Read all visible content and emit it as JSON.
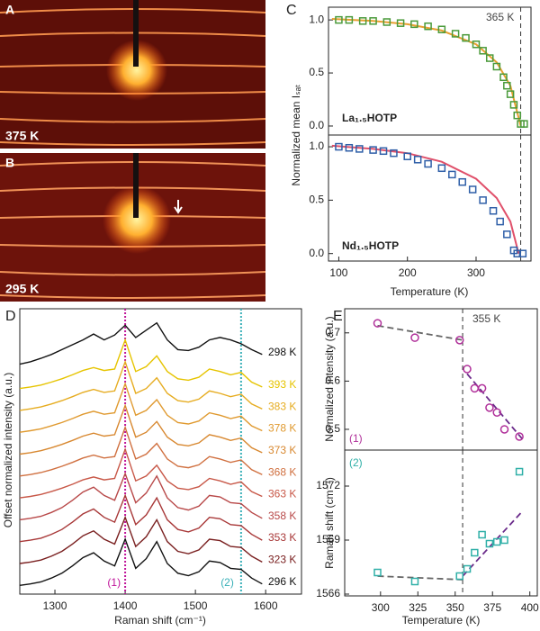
{
  "panels": [
    {
      "letter": "A",
      "label": "375 K"
    },
    {
      "letter": "B",
      "label": "295 K"
    }
  ],
  "chart_data": [
    {
      "type": "scatter",
      "panel": "C",
      "ylabel": "Normalized mean Iₛₐₜ",
      "label": "La₁.₅HOTP",
      "xlim": [
        85,
        380
      ],
      "ylim": [
        -0.085,
        1.12
      ],
      "yticks": [
        {
          "value": 0,
          "label": "0.0"
        },
        0.5,
        {
          "value": 1,
          "label": "1.0"
        }
      ],
      "vline": {
        "x": 365,
        "label": "365 K",
        "color": "#333333"
      },
      "series": [
        {
          "marker": "line",
          "color": "#e8a030",
          "x": [
            90,
            150,
            200,
            250,
            300,
            330,
            350,
            365
          ],
          "values": [
            1.01,
            0.99,
            0.96,
            0.9,
            0.77,
            0.6,
            0.38,
            0.0
          ]
        },
        {
          "marker": "square",
          "color": "#4a9a3a",
          "x": [
            100,
            115,
            135,
            150,
            170,
            190,
            210,
            230,
            250,
            270,
            285,
            300,
            310,
            320,
            330,
            340,
            345,
            350,
            355,
            360,
            365,
            370
          ],
          "values": [
            1.0,
            1.0,
            0.99,
            0.99,
            0.98,
            0.97,
            0.96,
            0.94,
            0.91,
            0.87,
            0.83,
            0.77,
            0.71,
            0.64,
            0.56,
            0.46,
            0.38,
            0.3,
            0.2,
            0.1,
            0.02,
            0.02
          ]
        }
      ]
    },
    {
      "type": "scatter",
      "panel": "C",
      "xlabel": "Temperature (K)",
      "label": "Nd₁.₅HOTP",
      "xlim": [
        85,
        380
      ],
      "ylim": [
        -0.07,
        1.11
      ],
      "xticks": [
        100,
        200,
        300
      ],
      "yticks": [
        {
          "value": 0,
          "label": "0.0"
        },
        0.5,
        {
          "value": 1,
          "label": "1.0"
        }
      ],
      "vline": {
        "x": 365,
        "color": "#333333"
      },
      "series": [
        {
          "marker": "line",
          "color": "#e0506a",
          "x": [
            90,
            150,
            200,
            250,
            300,
            330,
            350,
            362
          ],
          "values": [
            1.01,
            0.98,
            0.94,
            0.86,
            0.7,
            0.52,
            0.3,
            0.0
          ]
        },
        {
          "marker": "square",
          "color": "#2f5fa8",
          "x": [
            100,
            115,
            130,
            150,
            165,
            180,
            200,
            215,
            230,
            250,
            265,
            280,
            295,
            310,
            325,
            335,
            345,
            355,
            360,
            368
          ],
          "values": [
            1.0,
            0.99,
            0.98,
            0.97,
            0.96,
            0.94,
            0.91,
            0.88,
            0.84,
            0.8,
            0.74,
            0.67,
            0.6,
            0.5,
            0.4,
            0.3,
            0.18,
            0.03,
            0.0,
            0.0
          ]
        }
      ]
    },
    {
      "type": "line",
      "panel": "D",
      "xlabel": "Raman shift (cm⁻¹)",
      "ylabel": "Offset normalized intensity (a.u.)",
      "xlim": [
        1250,
        1651
      ],
      "ylim": [
        -0.13,
        5.74
      ],
      "xticks": [
        1300,
        1400,
        1500,
        1600
      ],
      "vlines": [
        {
          "x": 1400,
          "label": "(1)",
          "color": "#c0149a"
        },
        {
          "x": 1565,
          "label": "(2)",
          "color": "#3ab0b8"
        }
      ],
      "x": [
        1250,
        1265,
        1280,
        1295,
        1310,
        1325,
        1340,
        1355,
        1370,
        1385,
        1400,
        1415,
        1430,
        1445,
        1460,
        1475,
        1490,
        1505,
        1520,
        1535,
        1550,
        1565,
        1580,
        1595
      ],
      "series": [
        {
          "name": "298 K",
          "color": "#111111",
          "values": [
            4.6,
            4.65,
            4.72,
            4.8,
            4.9,
            5.0,
            5.1,
            5.22,
            5.1,
            5.2,
            5.4,
            5.15,
            5.3,
            5.45,
            5.1,
            4.9,
            4.88,
            4.95,
            5.1,
            5.15,
            5.1,
            5.02,
            4.9,
            4.8
          ]
        },
        {
          "name": "393 K",
          "color": "#e6c400",
          "values": [
            4.1,
            4.13,
            4.17,
            4.23,
            4.3,
            4.38,
            4.47,
            4.53,
            4.47,
            4.5,
            5.1,
            4.45,
            4.55,
            4.77,
            4.45,
            4.3,
            4.27,
            4.33,
            4.5,
            4.45,
            4.38,
            4.43,
            4.23,
            4.13
          ]
        },
        {
          "name": "383 K",
          "color": "#e6ac20",
          "values": [
            3.65,
            3.68,
            3.72,
            3.78,
            3.85,
            3.93,
            4.02,
            4.08,
            4.02,
            4.05,
            4.65,
            4.0,
            4.1,
            4.32,
            4.0,
            3.85,
            3.82,
            3.88,
            4.05,
            4.0,
            3.93,
            3.98,
            3.78,
            3.68
          ]
        },
        {
          "name": "378 K",
          "color": "#e09a30",
          "values": [
            3.2,
            3.23,
            3.27,
            3.33,
            3.4,
            3.48,
            3.57,
            3.63,
            3.57,
            3.6,
            4.2,
            3.55,
            3.65,
            3.87,
            3.55,
            3.4,
            3.37,
            3.43,
            3.6,
            3.55,
            3.48,
            3.53,
            3.33,
            3.23
          ]
        },
        {
          "name": "373 K",
          "color": "#d88830",
          "values": [
            2.75,
            2.78,
            2.82,
            2.88,
            2.95,
            3.03,
            3.12,
            3.18,
            3.12,
            3.15,
            3.75,
            3.1,
            3.2,
            3.42,
            3.1,
            2.95,
            2.92,
            2.98,
            3.15,
            3.1,
            3.03,
            3.08,
            2.88,
            2.78
          ]
        },
        {
          "name": "368 K",
          "color": "#d07040",
          "values": [
            2.3,
            2.33,
            2.37,
            2.43,
            2.5,
            2.58,
            2.67,
            2.73,
            2.67,
            2.7,
            3.3,
            2.65,
            2.75,
            2.97,
            2.65,
            2.5,
            2.47,
            2.53,
            2.7,
            2.65,
            2.58,
            2.63,
            2.43,
            2.33
          ]
        },
        {
          "name": "363 K",
          "color": "#c85848",
          "values": [
            1.85,
            1.88,
            1.92,
            1.98,
            2.05,
            2.13,
            2.22,
            2.28,
            2.22,
            2.25,
            2.85,
            2.2,
            2.3,
            2.52,
            2.2,
            2.05,
            2.02,
            2.08,
            2.25,
            2.2,
            2.13,
            2.18,
            1.98,
            1.88
          ]
        },
        {
          "name": "358 K",
          "color": "#b84848",
          "values": [
            1.4,
            1.43,
            1.47,
            1.55,
            1.65,
            1.8,
            1.97,
            2.07,
            1.9,
            1.8,
            2.35,
            1.75,
            1.95,
            2.3,
            1.85,
            1.65,
            1.6,
            1.68,
            1.9,
            1.87,
            1.75,
            1.73,
            1.55,
            1.43
          ]
        },
        {
          "name": "353 K",
          "color": "#a83838",
          "values": [
            0.95,
            0.98,
            1.02,
            1.1,
            1.2,
            1.35,
            1.52,
            1.62,
            1.45,
            1.35,
            1.9,
            1.3,
            1.5,
            1.85,
            1.4,
            1.2,
            1.15,
            1.23,
            1.45,
            1.42,
            1.3,
            1.28,
            1.1,
            0.98
          ]
        },
        {
          "name": "323 K",
          "color": "#7a2020",
          "values": [
            0.5,
            0.53,
            0.57,
            0.65,
            0.75,
            0.9,
            1.07,
            1.17,
            1.0,
            0.9,
            1.45,
            0.85,
            1.05,
            1.4,
            0.95,
            0.75,
            0.7,
            0.78,
            1.0,
            0.97,
            0.85,
            0.83,
            0.65,
            0.53
          ]
        },
        {
          "name": "296 K",
          "color": "#111111",
          "values": [
            0.05,
            0.08,
            0.12,
            0.2,
            0.3,
            0.45,
            0.62,
            0.72,
            0.55,
            0.45,
            1.0,
            0.4,
            0.6,
            0.95,
            0.5,
            0.3,
            0.25,
            0.33,
            0.55,
            0.52,
            0.4,
            0.38,
            0.2,
            0.08
          ]
        }
      ]
    },
    {
      "type": "scatter",
      "panel": "E",
      "ylabel": "Normalized intensity (a.u.)",
      "label": "(1)",
      "label_color": "#b0309a",
      "xlim": [
        276,
        405
      ],
      "ylim": [
        0.457,
        0.75
      ],
      "yticks": [
        0.5,
        0.6,
        0.7
      ],
      "vline": {
        "x": 355,
        "label": "355 K",
        "color": "#333333"
      },
      "series": [
        {
          "marker": "dashed",
          "color": "#666666",
          "x": [
            298,
            355
          ],
          "values": [
            0.715,
            0.685
          ]
        },
        {
          "marker": "dashed",
          "color": "#6a2a8a",
          "x": [
            358,
            395
          ],
          "values": [
            0.615,
            0.48
          ]
        },
        {
          "marker": "circle",
          "color": "#b0309a",
          "x": [
            298,
            323,
            353,
            358,
            363,
            368,
            373,
            378,
            383,
            393
          ],
          "values": [
            0.72,
            0.69,
            0.685,
            0.625,
            0.585,
            0.585,
            0.545,
            0.535,
            0.5,
            0.485
          ]
        }
      ]
    },
    {
      "type": "scatter",
      "panel": "E",
      "ylabel": "Raman shift (cm⁻¹)",
      "xlabel": "Temperature (K)",
      "label": "(2)",
      "label_color": "#30b0a8",
      "xlim": [
        276,
        405
      ],
      "ylim": [
        1565.9,
        1574
      ],
      "xticks": [
        300,
        325,
        350,
        375,
        400
      ],
      "yticks": [
        1566,
        1569,
        1572
      ],
      "vline": {
        "x": 355,
        "color": "#333333"
      },
      "series": [
        {
          "marker": "dashed",
          "color": "#666666",
          "x": [
            298,
            355
          ],
          "values": [
            1567.0,
            1566.8
          ]
        },
        {
          "marker": "dashed",
          "color": "#6a2a8a",
          "x": [
            355,
            395
          ],
          "values": [
            1567.0,
            1570.6
          ]
        },
        {
          "marker": "square",
          "color": "#30b0a8",
          "x": [
            298,
            323,
            353,
            358,
            363,
            368,
            373,
            378,
            383,
            393
          ],
          "values": [
            1567.2,
            1566.7,
            1567.0,
            1567.4,
            1568.3,
            1569.3,
            1568.8,
            1568.9,
            1569.0,
            1572.8
          ]
        }
      ]
    }
  ]
}
